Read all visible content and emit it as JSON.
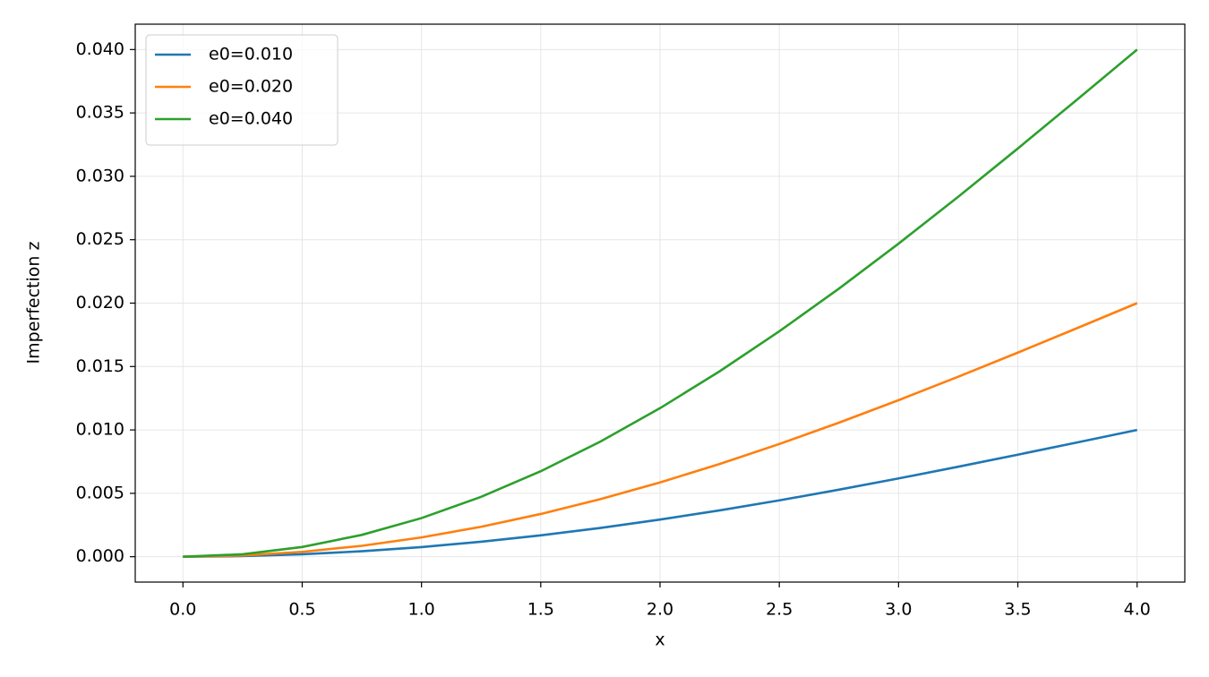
{
  "chart_data": {
    "type": "line",
    "x_label": "x",
    "y_label": "Imperfection z",
    "x": [
      0,
      0.25,
      0.5,
      0.75,
      1,
      1.25,
      1.5,
      1.75,
      2,
      2.25,
      2.5,
      2.75,
      3,
      3.25,
      3.5,
      3.75,
      4
    ],
    "series": [
      {
        "name": "e0=0.010",
        "color": "#1f77b4",
        "values": [
          0,
          4.8e-05,
          0.000192,
          0.000431,
          0.000761,
          0.001181,
          0.001685,
          0.00227,
          0.002929,
          0.003656,
          0.004444,
          0.005286,
          0.006173,
          0.007097,
          0.008049,
          0.00902,
          0.01
        ]
      },
      {
        "name": "e0=0.020",
        "color": "#ff7f0e",
        "values": [
          0,
          9.6e-05,
          0.000384,
          0.000861,
          0.001522,
          0.002362,
          0.003371,
          0.00454,
          0.005858,
          0.007312,
          0.008889,
          0.010572,
          0.012346,
          0.014194,
          0.016098,
          0.01804,
          0.02
        ]
      },
      {
        "name": "e0=0.040",
        "color": "#2ca02c",
        "values": [
          0,
          0.000193,
          0.000769,
          0.001722,
          0.003045,
          0.004723,
          0.006741,
          0.00908,
          0.011716,
          0.014624,
          0.017777,
          0.021144,
          0.024693,
          0.028389,
          0.032196,
          0.03608,
          0.04
        ]
      }
    ],
    "xlim": [
      -0.2,
      4.2
    ],
    "xticks": [
      {
        "value": 0,
        "label": "0.0"
      },
      0.5,
      {
        "value": 1,
        "label": "1.0"
      },
      1.5,
      {
        "value": 2,
        "label": "2.0"
      },
      2.5,
      {
        "value": 3,
        "label": "3.0"
      },
      3.5,
      {
        "value": 4,
        "label": "4.0"
      }
    ],
    "ylim": [
      -0.002,
      0.042
    ],
    "yticks": [
      {
        "value": 0,
        "label": "0.000"
      },
      {
        "value": 0.005,
        "label": "0.005"
      },
      {
        "value": 0.01,
        "label": "0.010"
      },
      {
        "value": 0.015,
        "label": "0.015"
      },
      {
        "value": 0.02,
        "label": "0.020"
      },
      {
        "value": 0.025,
        "label": "0.025"
      },
      {
        "value": 0.03,
        "label": "0.030"
      },
      {
        "value": 0.035,
        "label": "0.035"
      },
      {
        "value": 0.04,
        "label": "0.040"
      }
    ],
    "grid": true,
    "legend": "upper-left"
  }
}
